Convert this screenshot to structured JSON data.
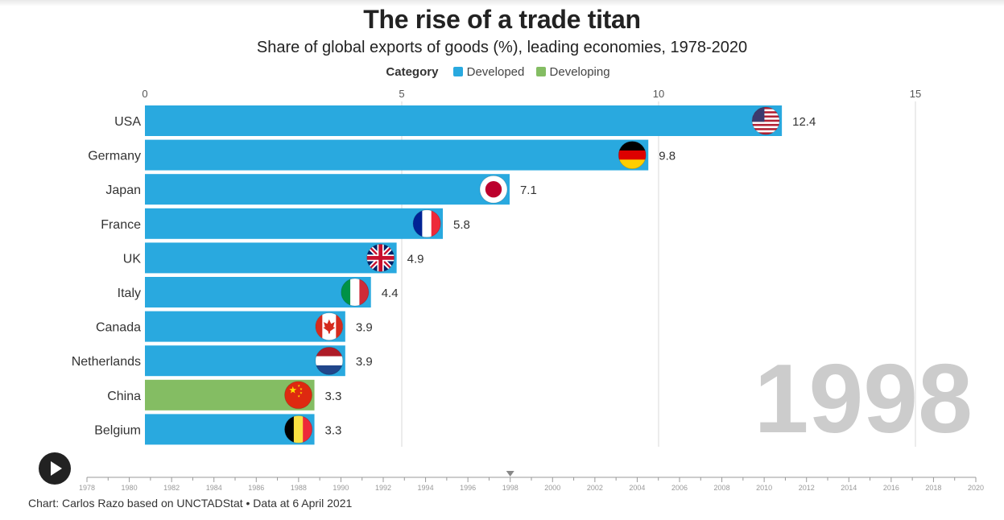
{
  "title": "The rise of a trade titan",
  "subtitle": "Share of global exports of goods (%), leading economies, 1978-2020",
  "legend": {
    "title": "Category",
    "items": [
      {
        "label": "Developed",
        "color": "#29a9df"
      },
      {
        "label": "Developing",
        "color": "#84bd63"
      }
    ]
  },
  "chart_data": {
    "type": "bar",
    "orientation": "horizontal",
    "title": "The rise of a trade titan",
    "subtitle": "Share of global exports of goods (%), leading economies, 1978-2020",
    "year": "1998",
    "categories": [
      "USA",
      "Germany",
      "Japan",
      "France",
      "UK",
      "Italy",
      "Canada",
      "Netherlands",
      "China",
      "Belgium"
    ],
    "values": [
      12.4,
      9.8,
      7.1,
      5.8,
      4.9,
      4.4,
      3.9,
      3.9,
      3.3,
      3.3
    ],
    "value_labels": [
      "12.4",
      "9.8",
      "7.1",
      "5.8",
      "4.9",
      "4.4",
      "3.9",
      "3.9",
      "3.3",
      "3.3"
    ],
    "category_group": [
      "Developed",
      "Developed",
      "Developed",
      "Developed",
      "Developed",
      "Developed",
      "Developed",
      "Developed",
      "Developing",
      "Developed"
    ],
    "flags": [
      "usa-flag-icon",
      "germany-flag-icon",
      "japan-flag-icon",
      "france-flag-icon",
      "uk-flag-icon",
      "italy-flag-icon",
      "canada-flag-icon",
      "netherlands-flag-icon",
      "china-flag-icon",
      "belgium-flag-icon"
    ],
    "xlim": [
      0,
      16.5
    ],
    "xticks": [
      0,
      5,
      10,
      15
    ],
    "xtick_labels": [
      "0",
      "5",
      "10",
      "15"
    ],
    "xaxis_position": "top",
    "grid": true,
    "colors": {
      "Developed": "#29a9df",
      "Developing": "#84bd63"
    }
  },
  "timeline": {
    "years": [
      "1978",
      "1980",
      "1982",
      "1984",
      "1986",
      "1988",
      "1990",
      "1992",
      "1994",
      "1996",
      "1998",
      "2000",
      "2002",
      "2004",
      "2006",
      "2008",
      "2010",
      "2012",
      "2014",
      "2016",
      "2018",
      "2020"
    ],
    "current_year": "1998",
    "range": [
      1978,
      2020
    ]
  },
  "controls": {
    "play_icon": "play-icon"
  },
  "footer": "Chart: Carlos Razo based on UNCTADStat • Data at 6 April 2021"
}
